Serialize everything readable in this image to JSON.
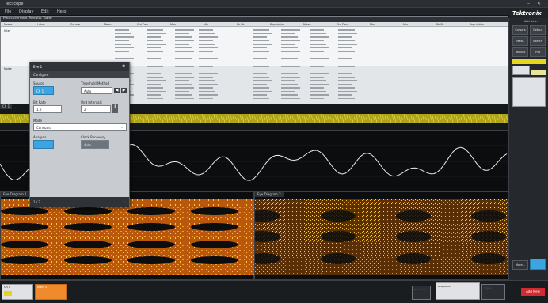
{
  "window": {
    "title": "TekScope"
  },
  "menu": [
    "File",
    "Display",
    "Edit",
    "Help"
  ],
  "brand": "Tektronix",
  "results": {
    "title": "Measurement Results Table",
    "columns": [
      "Name",
      "Label",
      "Source",
      "Mean",
      "Std Dev",
      "Max",
      "Min",
      "Pk-Pk",
      "Population",
      "Mean",
      "Std Dev",
      "Max",
      "Min",
      "Pk-Pk",
      "Population"
    ],
    "group1": "Jitter",
    "group2": "Noise"
  },
  "dialog": {
    "title": "Eye 1",
    "tab": "Configure",
    "source_label": "Source",
    "source_value": "Ch 1",
    "threshold_label": "Threshold Method",
    "threshold_value": "Auto",
    "uintervals_label": "Unit Intervals",
    "uintervals_value": "2",
    "bitrate_label": "Bit Rate",
    "bitrate_value": "1.0",
    "mode_label": "Mode",
    "mode_value": "Constant",
    "clock_label": "Clock Recovery",
    "clock_value": "Auto",
    "analysis_label": "Analysis",
    "page": "1 / 2"
  },
  "panes": {
    "top": "Ch 1",
    "wave": "Math 1",
    "eye_left": "Eye Diagram 1",
    "eye_right": "Eye Diagram 2"
  },
  "sidebar": {
    "header": "Add New...",
    "buttons": [
      "Cursors",
      "Callout",
      "Meas",
      "Search",
      "Results Table",
      "Plot",
      "More..."
    ],
    "add_new": "Add New"
  },
  "bottom": {
    "ch1": "Ch 1",
    "math": "Math 1",
    "horizontal": "Horizontal",
    "acq": "Acquisition",
    "trigger": "Trigger"
  },
  "colors": {
    "accent": "#f08b2d",
    "waveform": "#e6d51e",
    "eye": "#e07a10",
    "addnew": "#d12a2f"
  }
}
